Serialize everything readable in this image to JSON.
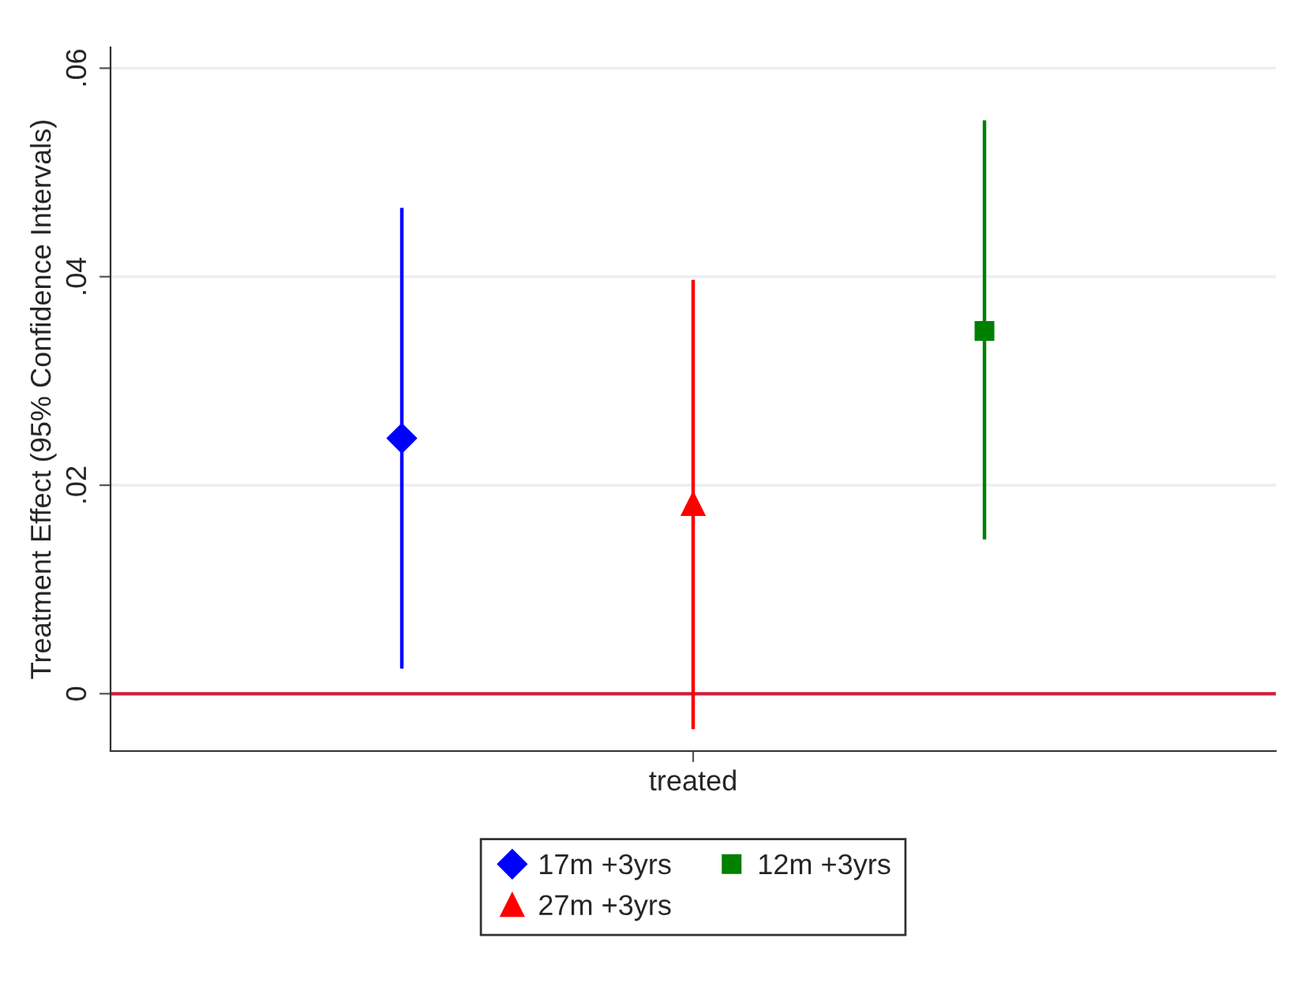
{
  "chart_data": {
    "type": "scatter",
    "ylabel": "Treatment Effect (95% Confidence Intervals)",
    "categories": [
      "treated"
    ],
    "series": [
      {
        "name": "17m +3yrs",
        "color": "#0000ff",
        "marker": "diamond",
        "values": [
          0.0245
        ],
        "errors": [
          [
            0.0024,
            0.0466
          ]
        ]
      },
      {
        "name": "27m +3yrs",
        "color": "#ff0000",
        "marker": "triangle",
        "values": [
          0.0182
        ],
        "errors": [
          [
            -0.0034,
            0.0397
          ]
        ]
      },
      {
        "name": "12m +3yrs",
        "color": "#008000",
        "marker": "square",
        "values": [
          0.0348
        ],
        "errors": [
          [
            0.0148,
            0.055
          ]
        ]
      }
    ],
    "ylim": [
      -0.0055,
      0.062
    ],
    "yticks": [
      0,
      {
        "value": 0.02,
        "label": ".02"
      },
      {
        "value": 0.04,
        "label": ".04"
      },
      {
        "value": 0.06,
        "label": ".06"
      }
    ],
    "ref_lines": [
      {
        "axis": "y",
        "value": 0,
        "color": "#d01c3c"
      }
    ],
    "grid": "y",
    "legend": "bottom"
  }
}
